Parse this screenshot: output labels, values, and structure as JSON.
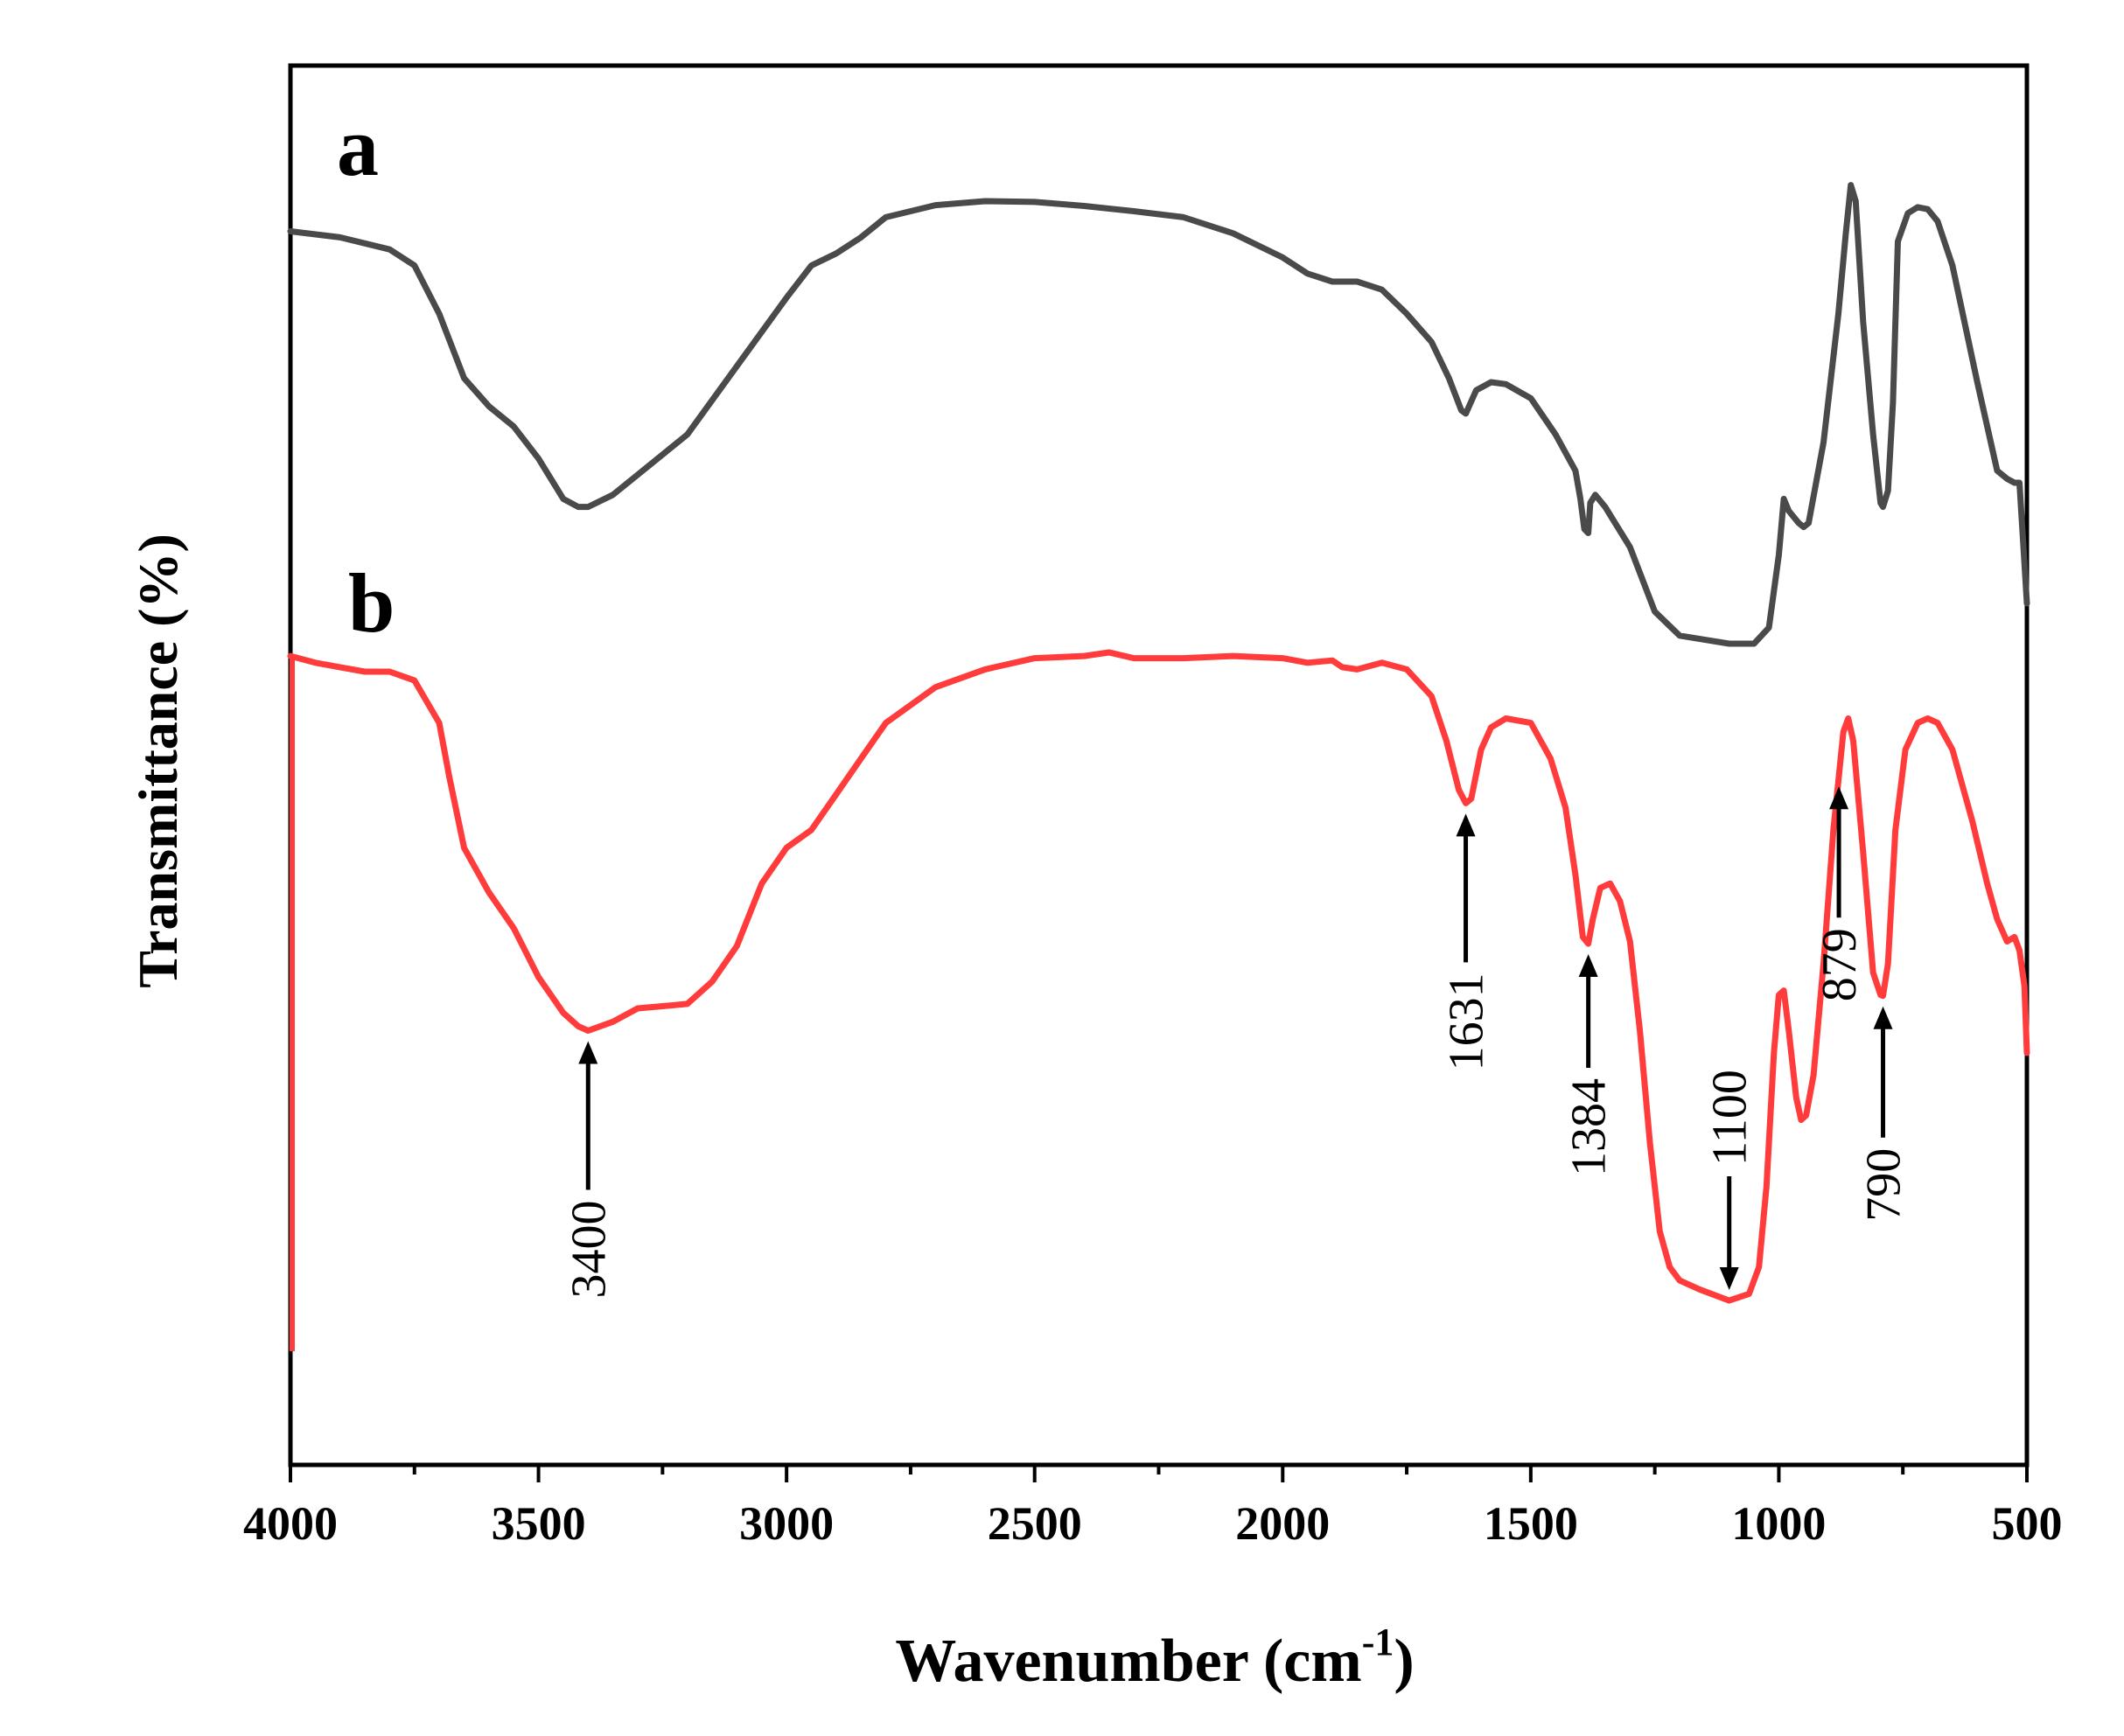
{
  "chart_data": {
    "type": "line",
    "title": "",
    "xlabel": "Wavenumber",
    "xlabel_unit_open": "(cm",
    "xlabel_unit_sup": "-1",
    "xlabel_unit_close": ")",
    "ylabel": "Transmittance (%)",
    "xlim": [
      4000,
      500
    ],
    "x_ticks": [
      4000,
      3500,
      3000,
      2500,
      2000,
      1500,
      1000,
      500
    ],
    "x_tick_labels": [
      "4000",
      "3500",
      "3000",
      "2500",
      "2000",
      "1500",
      "1000",
      "500"
    ],
    "y_ticks_shown": false,
    "series": [
      {
        "name": "a",
        "color": "#4a4a4a",
        "points": [
          [
            4000,
            0.925
          ],
          [
            3900,
            0.91
          ],
          [
            3800,
            0.88
          ],
          [
            3750,
            0.84
          ],
          [
            3700,
            0.72
          ],
          [
            3650,
            0.56
          ],
          [
            3600,
            0.49
          ],
          [
            3550,
            0.44
          ],
          [
            3500,
            0.36
          ],
          [
            3450,
            0.26
          ],
          [
            3420,
            0.24
          ],
          [
            3400,
            0.24
          ],
          [
            3350,
            0.27
          ],
          [
            3300,
            0.32
          ],
          [
            3200,
            0.42
          ],
          [
            3100,
            0.59
          ],
          [
            3000,
            0.76
          ],
          [
            2950,
            0.84
          ],
          [
            2900,
            0.87
          ],
          [
            2850,
            0.91
          ],
          [
            2800,
            0.96
          ],
          [
            2700,
            0.99
          ],
          [
            2600,
            1.0
          ],
          [
            2500,
            0.998
          ],
          [
            2400,
            0.988
          ],
          [
            2300,
            0.975
          ],
          [
            2200,
            0.96
          ],
          [
            2100,
            0.92
          ],
          [
            2000,
            0.86
          ],
          [
            1950,
            0.82
          ],
          [
            1900,
            0.8
          ],
          [
            1850,
            0.8
          ],
          [
            1800,
            0.78
          ],
          [
            1750,
            0.72
          ],
          [
            1700,
            0.65
          ],
          [
            1665,
            0.56
          ],
          [
            1640,
            0.48
          ],
          [
            1631,
            0.472
          ],
          [
            1610,
            0.53
          ],
          [
            1580,
            0.55
          ],
          [
            1550,
            0.545
          ],
          [
            1500,
            0.51
          ],
          [
            1450,
            0.42
          ],
          [
            1410,
            0.33
          ],
          [
            1400,
            0.26
          ],
          [
            1392,
            0.185
          ],
          [
            1384,
            0.175
          ],
          [
            1380,
            0.25
          ],
          [
            1370,
            0.27
          ],
          [
            1350,
            0.24
          ],
          [
            1300,
            0.14
          ],
          [
            1250,
            -0.02
          ],
          [
            1200,
            -0.08
          ],
          [
            1150,
            -0.09
          ],
          [
            1100,
            -0.1
          ],
          [
            1050,
            -0.1
          ],
          [
            1020,
            -0.06
          ],
          [
            1000,
            0.12
          ],
          [
            990,
            0.26
          ],
          [
            980,
            0.23
          ],
          [
            960,
            0.2
          ],
          [
            950,
            0.19
          ],
          [
            940,
            0.2
          ],
          [
            910,
            0.4
          ],
          [
            880,
            0.72
          ],
          [
            865,
            0.92
          ],
          [
            855,
            1.04
          ],
          [
            845,
            1.0
          ],
          [
            830,
            0.7
          ],
          [
            810,
            0.42
          ],
          [
            795,
            0.25
          ],
          [
            790,
            0.24
          ],
          [
            780,
            0.28
          ],
          [
            770,
            0.5
          ],
          [
            760,
            0.9
          ],
          [
            740,
            0.97
          ],
          [
            720,
            0.985
          ],
          [
            700,
            0.98
          ],
          [
            680,
            0.95
          ],
          [
            650,
            0.84
          ],
          [
            600,
            0.55
          ],
          [
            560,
            0.33
          ],
          [
            540,
            0.31
          ],
          [
            525,
            0.3
          ],
          [
            515,
            0.3
          ],
          [
            505,
            0.1
          ],
          [
            500,
            0.0
          ]
        ]
      },
      {
        "name": "b",
        "color": "#ff3b3b",
        "points": [
          [
            4000,
            0.99
          ],
          [
            3950,
            0.975
          ],
          [
            3900,
            0.965
          ],
          [
            3850,
            0.955
          ],
          [
            3800,
            0.955
          ],
          [
            3750,
            0.935
          ],
          [
            3700,
            0.84
          ],
          [
            3680,
            0.72
          ],
          [
            3650,
            0.56
          ],
          [
            3600,
            0.46
          ],
          [
            3550,
            0.38
          ],
          [
            3500,
            0.27
          ],
          [
            3450,
            0.19
          ],
          [
            3420,
            0.16
          ],
          [
            3400,
            0.15
          ],
          [
            3350,
            0.17
          ],
          [
            3300,
            0.2
          ],
          [
            3250,
            0.205
          ],
          [
            3200,
            0.21
          ],
          [
            3150,
            0.26
          ],
          [
            3100,
            0.34
          ],
          [
            3050,
            0.48
          ],
          [
            3000,
            0.56
          ],
          [
            2950,
            0.6
          ],
          [
            2900,
            0.68
          ],
          [
            2850,
            0.76
          ],
          [
            2800,
            0.84
          ],
          [
            2700,
            0.92
          ],
          [
            2600,
            0.96
          ],
          [
            2500,
            0.985
          ],
          [
            2400,
            0.99
          ],
          [
            2350,
            0.998
          ],
          [
            2300,
            0.985
          ],
          [
            2200,
            0.985
          ],
          [
            2100,
            0.99
          ],
          [
            2000,
            0.985
          ],
          [
            1950,
            0.975
          ],
          [
            1900,
            0.98
          ],
          [
            1880,
            0.965
          ],
          [
            1850,
            0.96
          ],
          [
            1800,
            0.975
          ],
          [
            1750,
            0.96
          ],
          [
            1700,
            0.9
          ],
          [
            1670,
            0.8
          ],
          [
            1645,
            0.69
          ],
          [
            1631,
            0.66
          ],
          [
            1620,
            0.67
          ],
          [
            1600,
            0.78
          ],
          [
            1580,
            0.83
          ],
          [
            1550,
            0.85
          ],
          [
            1500,
            0.84
          ],
          [
            1460,
            0.76
          ],
          [
            1430,
            0.65
          ],
          [
            1410,
            0.5
          ],
          [
            1395,
            0.36
          ],
          [
            1384,
            0.345
          ],
          [
            1375,
            0.4
          ],
          [
            1360,
            0.47
          ],
          [
            1340,
            0.48
          ],
          [
            1320,
            0.44
          ],
          [
            1300,
            0.35
          ],
          [
            1280,
            0.15
          ],
          [
            1260,
            -0.1
          ],
          [
            1240,
            -0.3
          ],
          [
            1220,
            -0.38
          ],
          [
            1200,
            -0.41
          ],
          [
            1160,
            -0.43
          ],
          [
            1100,
            -0.455
          ],
          [
            1060,
            -0.44
          ],
          [
            1040,
            -0.38
          ],
          [
            1025,
            -0.2
          ],
          [
            1010,
            0.1
          ],
          [
            1000,
            0.23
          ],
          [
            990,
            0.24
          ],
          [
            980,
            0.15
          ],
          [
            965,
            0.0
          ],
          [
            955,
            -0.05
          ],
          [
            945,
            -0.04
          ],
          [
            930,
            0.05
          ],
          [
            910,
            0.3
          ],
          [
            890,
            0.6
          ],
          [
            870,
            0.82
          ],
          [
            860,
            0.85
          ],
          [
            850,
            0.8
          ],
          [
            830,
            0.55
          ],
          [
            810,
            0.28
          ],
          [
            795,
            0.23
          ],
          [
            790,
            0.228
          ],
          [
            780,
            0.3
          ],
          [
            765,
            0.6
          ],
          [
            745,
            0.78
          ],
          [
            720,
            0.84
          ],
          [
            700,
            0.85
          ],
          [
            680,
            0.84
          ],
          [
            650,
            0.78
          ],
          [
            610,
            0.62
          ],
          [
            580,
            0.48
          ],
          [
            560,
            0.4
          ],
          [
            540,
            0.35
          ],
          [
            525,
            0.36
          ],
          [
            515,
            0.33
          ],
          [
            505,
            0.25
          ],
          [
            500,
            0.1
          ]
        ]
      }
    ],
    "series_labels": [
      "a",
      "b"
    ],
    "annotations": [
      {
        "label": "3400",
        "x": 3400,
        "series": "b",
        "direction": "up"
      },
      {
        "label": "1631",
        "x": 1631,
        "series": "b",
        "direction": "up"
      },
      {
        "label": "1384",
        "x": 1384,
        "series": "b",
        "direction": "up"
      },
      {
        "label": "1100",
        "x": 1100,
        "series": "b",
        "direction": "down"
      },
      {
        "label": "879",
        "x": 879,
        "series": "b",
        "direction": "up"
      },
      {
        "label": "790",
        "x": 790,
        "series": "b",
        "direction": "up"
      }
    ]
  }
}
